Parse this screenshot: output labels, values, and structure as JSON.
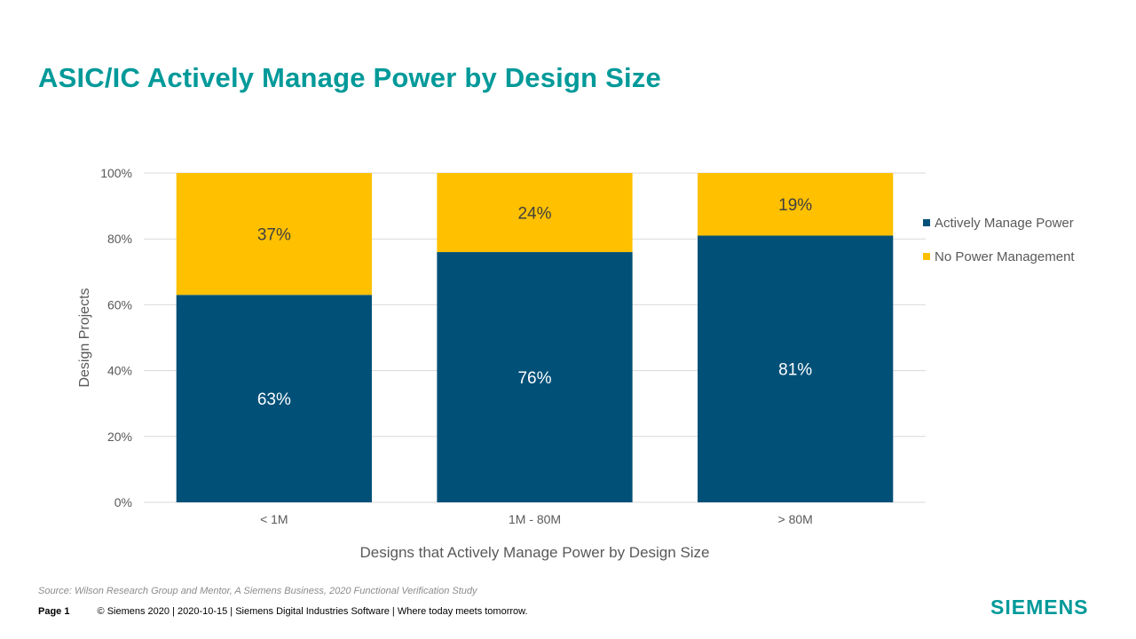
{
  "slide": {
    "title": "ASIC/IC Actively Manage Power by Design Size",
    "source": "Source:  Wilson Research Group and Mentor,  A Siemens Business, 2020 Functional Verification Study",
    "page": "Page 1",
    "footer_text": "© Siemens 2020 | 2020-10-15 | Siemens Digital Industries Software | Where today meets tomorrow.",
    "logo": "SIEMENS"
  },
  "chart_data": {
    "type": "bar",
    "stacked": true,
    "categories": [
      "< 1M",
      "1M - 80M",
      "> 80M"
    ],
    "series": [
      {
        "name": "Actively Manage Power",
        "values": [
          63,
          76,
          81
        ],
        "labels": [
          "63%",
          "76%",
          "81%"
        ],
        "color": "#005078"
      },
      {
        "name": "No Power Management",
        "values": [
          37,
          24,
          19
        ],
        "labels": [
          "37%",
          "24%",
          "19%"
        ],
        "color": "#FFC000"
      }
    ],
    "xlabel": "Designs that Actively Manage Power by Design Size",
    "ylabel": "Design Projects",
    "ylim": [
      0,
      100
    ],
    "yticks": [
      "0%",
      "20%",
      "40%",
      "60%",
      "80%",
      "100%"
    ],
    "grid": true,
    "legend_position": "right",
    "colors": {
      "label_on_dark": "#ffffff",
      "label_on_light": "#404040",
      "axis_text": "#595959",
      "gridline": "#d9d9d9"
    }
  }
}
